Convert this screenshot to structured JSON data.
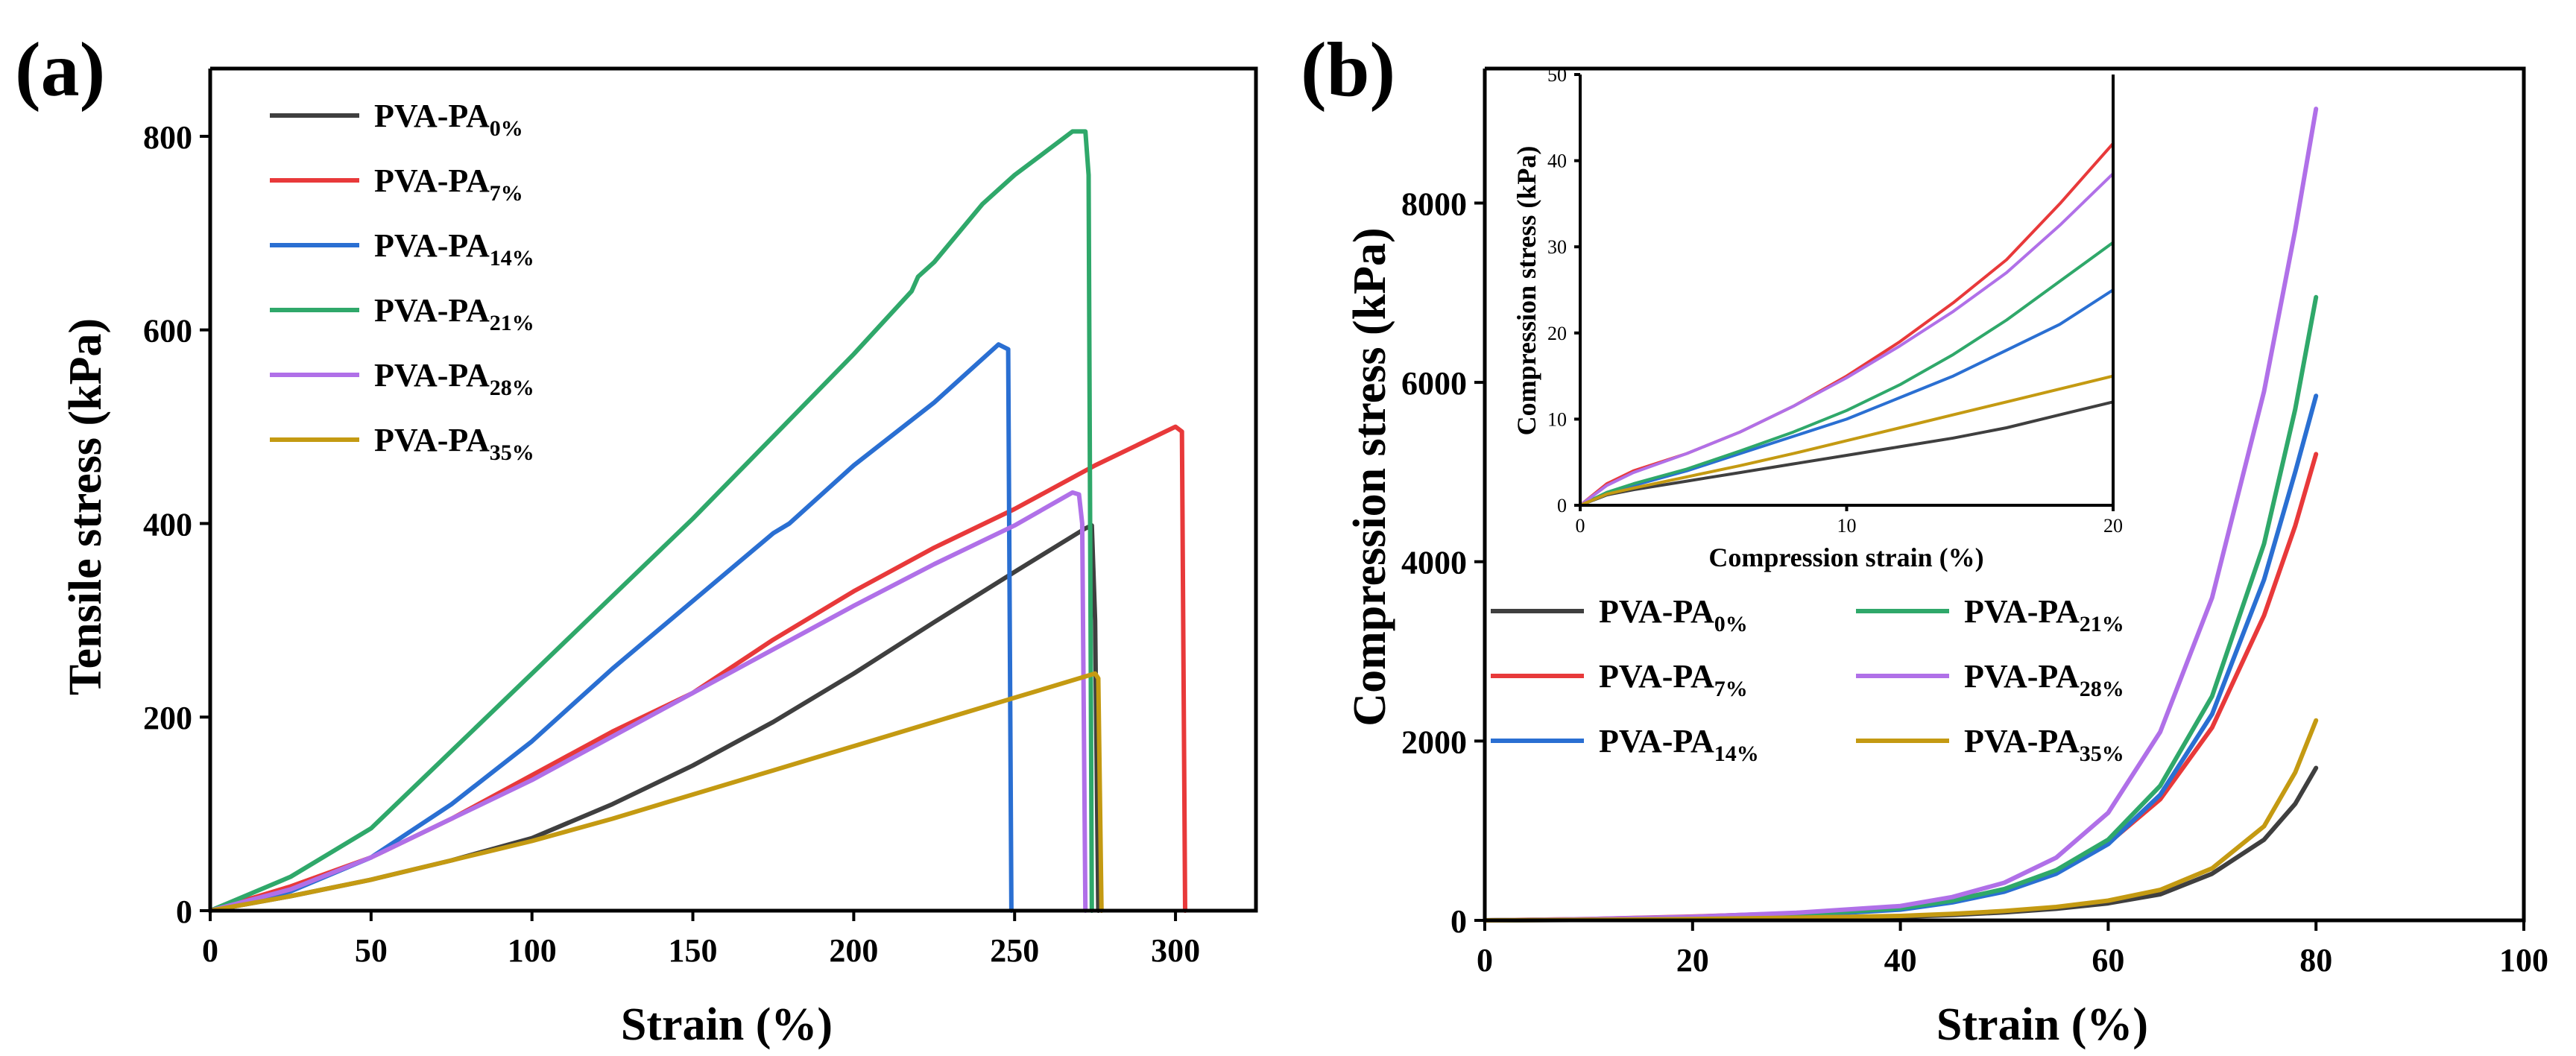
{
  "colors": {
    "PA0": "#3f3f3f",
    "PA7": "#e8393a",
    "PA14": "#2a6fd2",
    "PA21": "#2fa86a",
    "PA28": "#b070e8",
    "PA35": "#c49a12"
  },
  "chart_data": [
    {
      "panel": "(a)",
      "type": "line",
      "title": "",
      "xlabel": "Strain (%)",
      "ylabel": "Tensile stress (kPa)",
      "xlim": [
        0,
        325
      ],
      "ylim": [
        0,
        870
      ],
      "xticks": [
        0,
        50,
        100,
        150,
        200,
        250,
        300
      ],
      "yticks": [
        0,
        200,
        400,
        600,
        800
      ],
      "legend_position": "top-left",
      "series": [
        {
          "key": "PA0",
          "name": "PVA-PA",
          "sub": "0%",
          "x": [
            0,
            25,
            50,
            75,
            100,
            125,
            150,
            175,
            200,
            225,
            250,
            272,
            274,
            275,
            276
          ],
          "y": [
            0,
            15,
            32,
            52,
            75,
            110,
            150,
            195,
            245,
            298,
            350,
            395,
            398,
            300,
            0
          ]
        },
        {
          "key": "PA7",
          "name": "PVA-PA",
          "sub": "7%",
          "x": [
            0,
            25,
            50,
            75,
            100,
            125,
            150,
            175,
            200,
            225,
            250,
            275,
            300,
            302,
            303
          ],
          "y": [
            0,
            25,
            55,
            95,
            140,
            185,
            225,
            280,
            330,
            375,
            415,
            460,
            500,
            495,
            0
          ]
        },
        {
          "key": "PA14",
          "name": "PVA-PA",
          "sub": "14%",
          "x": [
            0,
            25,
            50,
            75,
            100,
            125,
            150,
            175,
            180,
            200,
            225,
            245,
            248,
            249
          ],
          "y": [
            0,
            20,
            55,
            110,
            175,
            250,
            320,
            390,
            400,
            460,
            525,
            585,
            580,
            0
          ]
        },
        {
          "key": "PA21",
          "name": "PVA-PA",
          "sub": "21%",
          "x": [
            0,
            25,
            50,
            75,
            100,
            125,
            150,
            175,
            200,
            218,
            220,
            225,
            240,
            250,
            260,
            268,
            272,
            273,
            274
          ],
          "y": [
            0,
            35,
            85,
            165,
            245,
            325,
            405,
            490,
            575,
            640,
            655,
            670,
            730,
            760,
            785,
            805,
            805,
            760,
            0
          ]
        },
        {
          "key": "PA28",
          "name": "PVA-PA",
          "sub": "28%",
          "x": [
            0,
            25,
            50,
            75,
            100,
            125,
            150,
            175,
            200,
            225,
            250,
            268,
            270,
            271,
            272
          ],
          "y": [
            0,
            22,
            55,
            95,
            135,
            180,
            225,
            270,
            315,
            358,
            398,
            432,
            430,
            400,
            0
          ]
        },
        {
          "key": "PA35",
          "name": "PVA-PA",
          "sub": "35%",
          "x": [
            0,
            25,
            50,
            75,
            100,
            125,
            150,
            175,
            200,
            225,
            250,
            270,
            275,
            276,
            277
          ],
          "y": [
            0,
            15,
            32,
            52,
            72,
            95,
            120,
            145,
            170,
            195,
            220,
            240,
            245,
            240,
            0
          ]
        }
      ]
    },
    {
      "panel": "(b)",
      "type": "line",
      "title": "",
      "xlabel": "Strain (%)",
      "ylabel": "Compression stress (kPa)",
      "xlim": [
        0,
        100
      ],
      "ylim": [
        0,
        9500
      ],
      "xticks": [
        0,
        20,
        40,
        60,
        80,
        100
      ],
      "yticks": [
        0,
        2000,
        4000,
        6000,
        8000
      ],
      "legend_position": "center-left",
      "series": [
        {
          "key": "PA0",
          "name": "PVA-PA",
          "sub": "0%",
          "x": [
            0,
            10,
            20,
            30,
            40,
            45,
            50,
            55,
            60,
            65,
            70,
            75,
            78,
            80
          ],
          "y": [
            0,
            5,
            12,
            25,
            40,
            60,
            90,
            130,
            190,
            290,
            520,
            900,
            1300,
            1700
          ]
        },
        {
          "key": "PA7",
          "name": "PVA-PA",
          "sub": "7%",
          "x": [
            0,
            10,
            20,
            30,
            40,
            45,
            50,
            55,
            60,
            65,
            70,
            75,
            78,
            80
          ],
          "y": [
            0,
            15,
            42,
            80,
            150,
            230,
            340,
            530,
            860,
            1350,
            2150,
            3400,
            4400,
            5200
          ]
        },
        {
          "key": "PA14",
          "name": "PVA-PA",
          "sub": "14%",
          "x": [
            0,
            10,
            20,
            30,
            40,
            45,
            50,
            55,
            60,
            65,
            70,
            75,
            78,
            80
          ],
          "y": [
            0,
            10,
            25,
            55,
            120,
            200,
            320,
            520,
            850,
            1400,
            2300,
            3800,
            5000,
            5850
          ]
        },
        {
          "key": "PA21",
          "name": "PVA-PA",
          "sub": "21%",
          "x": [
            0,
            10,
            20,
            30,
            40,
            45,
            50,
            55,
            60,
            65,
            70,
            75,
            78,
            80
          ],
          "y": [
            0,
            12,
            30,
            65,
            135,
            220,
            350,
            560,
            900,
            1500,
            2500,
            4200,
            5700,
            6950
          ]
        },
        {
          "key": "PA28",
          "name": "PVA-PA",
          "sub": "28%",
          "x": [
            0,
            10,
            20,
            30,
            40,
            45,
            50,
            55,
            60,
            65,
            70,
            75,
            78,
            80
          ],
          "y": [
            0,
            15,
            40,
            85,
            160,
            260,
            420,
            700,
            1200,
            2100,
            3600,
            5900,
            7700,
            9050
          ]
        },
        {
          "key": "PA35",
          "name": "PVA-PA",
          "sub": "35%",
          "x": [
            0,
            10,
            20,
            30,
            40,
            45,
            50,
            55,
            60,
            65,
            70,
            75,
            78,
            80
          ],
          "y": [
            0,
            6,
            15,
            30,
            50,
            72,
            105,
            150,
            220,
            340,
            580,
            1050,
            1650,
            2230
          ]
        }
      ],
      "inset": {
        "type": "line",
        "xlabel": "Compression strain (%)",
        "ylabel": "Compression stress (kPa)",
        "xlim": [
          0,
          20
        ],
        "ylim": [
          0,
          50
        ],
        "xticks": [
          0,
          10,
          20
        ],
        "yticks": [
          0,
          10,
          20,
          30,
          40,
          50
        ],
        "series": [
          {
            "key": "PA0",
            "x": [
              0,
              1,
              2,
              4,
              6,
              8,
              10,
              12,
              14,
              16,
              18,
              20
            ],
            "y": [
              0,
              1.2,
              1.8,
              2.8,
              3.8,
              4.8,
              5.8,
              6.8,
              7.8,
              9,
              10.5,
              12
            ]
          },
          {
            "key": "PA7",
            "x": [
              0,
              1,
              2,
              4,
              6,
              8,
              10,
              12,
              14,
              16,
              18,
              20
            ],
            "y": [
              0,
              2.5,
              4,
              6,
              8.5,
              11.5,
              15,
              19,
              23.5,
              28.5,
              35,
              42
            ]
          },
          {
            "key": "PA14",
            "x": [
              0,
              1,
              2,
              4,
              6,
              8,
              10,
              12,
              14,
              16,
              18,
              20
            ],
            "y": [
              0,
              1.3,
              2.3,
              4,
              6,
              8,
              10,
              12.5,
              15,
              18,
              21,
              25
            ]
          },
          {
            "key": "PA21",
            "x": [
              0,
              1,
              2,
              4,
              6,
              8,
              10,
              12,
              14,
              16,
              18,
              20
            ],
            "y": [
              0,
              1.5,
              2.5,
              4.2,
              6.3,
              8.5,
              11,
              14,
              17.5,
              21.5,
              26,
              30.5
            ]
          },
          {
            "key": "PA28",
            "x": [
              0,
              1,
              2,
              4,
              6,
              8,
              10,
              12,
              14,
              16,
              18,
              20
            ],
            "y": [
              0,
              2.3,
              3.8,
              6,
              8.5,
              11.5,
              14.8,
              18.5,
              22.5,
              27,
              32.5,
              38.5
            ]
          },
          {
            "key": "PA35",
            "x": [
              0,
              1,
              2,
              4,
              6,
              8,
              10,
              12,
              14,
              16,
              18,
              20
            ],
            "y": [
              0,
              1.3,
              2,
              3.3,
              4.6,
              6,
              7.5,
              9,
              10.5,
              12,
              13.5,
              15
            ]
          }
        ]
      }
    }
  ]
}
